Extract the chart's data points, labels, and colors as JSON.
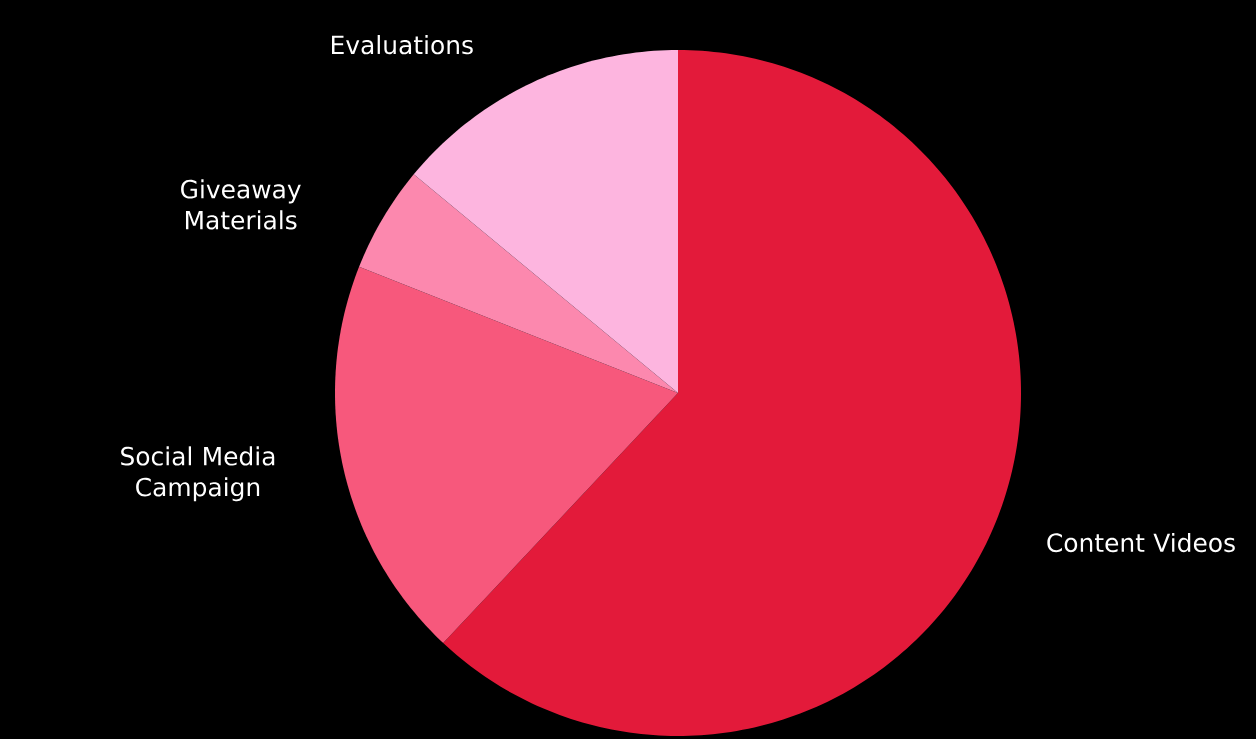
{
  "chart_data": {
    "type": "pie",
    "categories": [
      "Content Videos",
      "Social Media Campaign",
      "Giveaway Materials",
      "Evaluations"
    ],
    "values": [
      62,
      19,
      5,
      14
    ],
    "colors": [
      "#e31a3a",
      "#f7587c",
      "#fc88ae",
      "#fdb5df"
    ]
  }
}
